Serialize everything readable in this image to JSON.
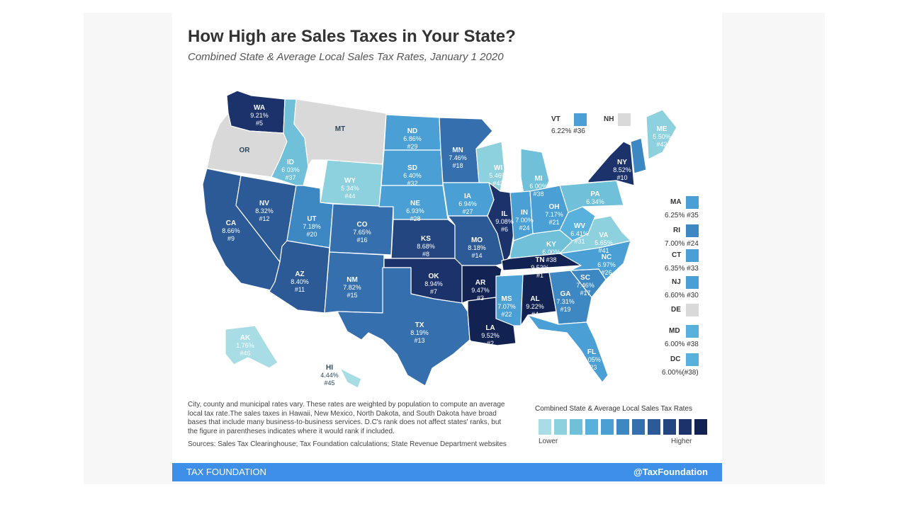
{
  "header": {
    "title": "How High are Sales Taxes in Your State?",
    "subtitle": "Combined State & Average Local Sales Tax Rates, January 1 2020"
  },
  "colors": {
    "c1": "#a8dde6",
    "c2": "#8dd0de",
    "c3": "#6fc0d8",
    "c4": "#58b0dc",
    "c5": "#4a9fd4",
    "c6": "#3d87c2",
    "c7": "#356fae",
    "c8": "#2c5a97",
    "c9": "#234580",
    "c10": "#1b326a",
    "c11": "#122353",
    "none": "#d9d9d9"
  },
  "states": {
    "WA": {
      "abbr": "WA",
      "rate": "9.21%",
      "rank": "#5",
      "tier": "c10"
    },
    "OR": {
      "abbr": "OR",
      "rate": "",
      "rank": "",
      "tier": "none"
    },
    "CA": {
      "abbr": "CA",
      "rate": "8.66%",
      "rank": "#9",
      "tier": "c8"
    },
    "NV": {
      "abbr": "NV",
      "rate": "8.32%",
      "rank": "#12",
      "tier": "c8"
    },
    "ID": {
      "abbr": "ID",
      "rate": "6.03%",
      "rank": "#37",
      "tier": "c3"
    },
    "MT": {
      "abbr": "MT",
      "rate": "",
      "rank": "",
      "tier": "none"
    },
    "WY": {
      "abbr": "WY",
      "rate": "5.34%",
      "rank": "#44",
      "tier": "c2"
    },
    "UT": {
      "abbr": "UT",
      "rate": "7.18%",
      "rank": "#20",
      "tier": "c6"
    },
    "AZ": {
      "abbr": "AZ",
      "rate": "8.40%",
      "rank": "#11",
      "tier": "c8"
    },
    "CO": {
      "abbr": "CO",
      "rate": "7.65%",
      "rank": "#16",
      "tier": "c7"
    },
    "NM": {
      "abbr": "NM",
      "rate": "7.82%",
      "rank": "#15",
      "tier": "c7"
    },
    "ND": {
      "abbr": "ND",
      "rate": "6.86%",
      "rank": "#29",
      "tier": "c5"
    },
    "SD": {
      "abbr": "SD",
      "rate": "6.40%",
      "rank": "#32",
      "tier": "c5"
    },
    "NE": {
      "abbr": "NE",
      "rate": "6.93%",
      "rank": "#28",
      "tier": "c5"
    },
    "KS": {
      "abbr": "KS",
      "rate": "8.68%",
      "rank": "#8",
      "tier": "c9"
    },
    "OK": {
      "abbr": "OK",
      "rate": "8.94%",
      "rank": "#7",
      "tier": "c10"
    },
    "TX": {
      "abbr": "TX",
      "rate": "8.19%",
      "rank": "#13",
      "tier": "c7"
    },
    "MN": {
      "abbr": "MN",
      "rate": "7.46%",
      "rank": "#18",
      "tier": "c7"
    },
    "IA": {
      "abbr": "IA",
      "rate": "6.94%",
      "rank": "#27",
      "tier": "c5"
    },
    "MO": {
      "abbr": "MO",
      "rate": "8.18%",
      "rank": "#14",
      "tier": "c8"
    },
    "AR": {
      "abbr": "AR",
      "rate": "9.47%",
      "rank": "#3",
      "tier": "c11"
    },
    "LA": {
      "abbr": "LA",
      "rate": "9.52%",
      "rank": "#2",
      "tier": "c11"
    },
    "WI": {
      "abbr": "WI",
      "rate": "5.46%",
      "rank": "#43",
      "tier": "c2"
    },
    "IL": {
      "abbr": "IL",
      "rate": "9.08%",
      "rank": "#6",
      "tier": "c10"
    },
    "MI": {
      "abbr": "MI",
      "rate": "6.00%",
      "rank": "#38",
      "tier": "c3"
    },
    "IN": {
      "abbr": "IN",
      "rate": "7.00%",
      "rank": "#24",
      "tier": "c5"
    },
    "OH": {
      "abbr": "OH",
      "rate": "7.17%",
      "rank": "#21",
      "tier": "c5"
    },
    "KY": {
      "abbr": "KY",
      "rate": "6.00%",
      "rank": "#38",
      "tier": "c3"
    },
    "TN": {
      "abbr": "TN",
      "rate": "9.53%",
      "rank": "#1",
      "tier": "c11"
    },
    "MS": {
      "abbr": "MS",
      "rate": "7.07%",
      "rank": "#22",
      "tier": "c5"
    },
    "AL": {
      "abbr": "AL",
      "rate": "9.22%",
      "rank": "#4",
      "tier": "c11"
    },
    "GA": {
      "abbr": "GA",
      "rate": "7.31%",
      "rank": "#19",
      "tier": "c6"
    },
    "FL": {
      "abbr": "FL",
      "rate": "7.05%",
      "rank": "#23",
      "tier": "c5"
    },
    "SC": {
      "abbr": "SC",
      "rate": "7.46%",
      "rank": "#17",
      "tier": "c6"
    },
    "NC": {
      "abbr": "NC",
      "rate": "6.97%",
      "rank": "#26",
      "tier": "c5"
    },
    "VA": {
      "abbr": "VA",
      "rate": "5.65%",
      "rank": "#41",
      "tier": "c2"
    },
    "WV": {
      "abbr": "WV",
      "rate": "6.41%",
      "rank": "#31",
      "tier": "c4"
    },
    "PA": {
      "abbr": "PA",
      "rate": "6.34%",
      "rank": "#34",
      "tier": "c3"
    },
    "NY": {
      "abbr": "NY",
      "rate": "8.52%",
      "rank": "#10",
      "tier": "c10"
    },
    "ME": {
      "abbr": "ME",
      "rate": "5.50%",
      "rank": "#42",
      "tier": "c2"
    },
    "AK": {
      "abbr": "AK",
      "rate": "1.76%",
      "rank": "#46",
      "tier": "c1"
    },
    "HI": {
      "abbr": "HI",
      "rate": "4.44%",
      "rank": "#45",
      "tier": "c1"
    }
  },
  "side_states": {
    "VT": {
      "abbr": "VT",
      "value": "6.22% #36",
      "color": "#4a9fd4"
    },
    "NH": {
      "abbr": "NH",
      "value": "",
      "color": "#d9d9d9"
    },
    "MA": {
      "abbr": "MA",
      "value": "6.25% #35",
      "color": "#4a9fd4"
    },
    "RI": {
      "abbr": "RI",
      "value": "7.00% #24",
      "color": "#3d87c2"
    },
    "CT": {
      "abbr": "CT",
      "value": "6.35% #33",
      "color": "#4a9fd4"
    },
    "NJ": {
      "abbr": "NJ",
      "value": "6.60% #30",
      "color": "#4a9fd4"
    },
    "DE": {
      "abbr": "DE",
      "value": "",
      "color": "#d9d9d9"
    },
    "MD": {
      "abbr": "MD",
      "value": "6.00% #38",
      "color": "#58b0dc"
    },
    "DC": {
      "abbr": "DC",
      "value": "6.00%(#38)",
      "color": "#58b0dc"
    }
  },
  "notes": {
    "text": "City, county and municipal rates vary. These rates are weighted by population to compute an average local tax rate.The sales taxes in Hawaii, New Mexico, North Dakota, and South Dakota have broad bases that include many business-to-business services. D.C's rank does not affect states' ranks, but the figure in parentheses indicates where it would rank if included.",
    "sources": "Sources: Sales Tax Clearinghouse; Tax Foundation calculations; State Revenue Department websites"
  },
  "legend": {
    "title": "Combined State & Average Local Sales Tax Rates",
    "low_label": "Lower",
    "high_label": "Higher",
    "scale": [
      "#a8dde6",
      "#8dd0de",
      "#6fc0d8",
      "#58b0dc",
      "#4a9fd4",
      "#3d87c2",
      "#356fae",
      "#2c5a97",
      "#234580",
      "#1b326a",
      "#122353"
    ]
  },
  "footer": {
    "left": "TAX FOUNDATION",
    "right": "@TaxFoundation"
  }
}
